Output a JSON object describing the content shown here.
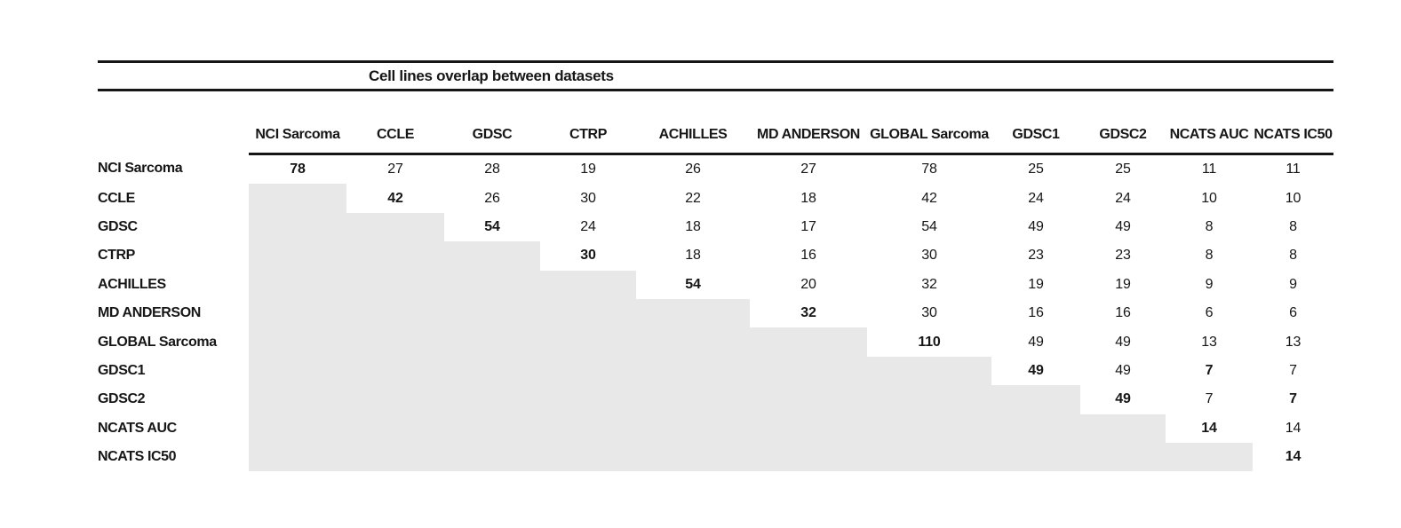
{
  "title_block": {
    "title": "Cell lines overlap between datasets"
  },
  "colors": {
    "shaded_cell": "#e8e8e8",
    "rule": "#161616",
    "text": "#161616",
    "background": "#ffffff"
  },
  "chart_data": {
    "type": "table",
    "title": "Cell lines overlap between datasets",
    "columns": [
      "NCI Sarcoma",
      "CCLE",
      "GDSC",
      "CTRP",
      "ACHILLES",
      "MD ANDERSON",
      "GLOBAL Sarcoma",
      "GDSC1",
      "GDSC2",
      "NCATS AUC",
      "NCATS IC50"
    ],
    "rows": [
      "NCI Sarcoma",
      "CCLE",
      "GDSC",
      "CTRP",
      "ACHILLES",
      "MD ANDERSON",
      "GLOBAL Sarcoma",
      "GDSC1",
      "GDSC2",
      "NCATS AUC",
      "NCATS IC50"
    ],
    "matrix": [
      [
        78,
        27,
        28,
        19,
        26,
        27,
        78,
        25,
        25,
        11,
        11
      ],
      [
        null,
        42,
        26,
        30,
        22,
        18,
        42,
        24,
        24,
        10,
        10
      ],
      [
        null,
        null,
        54,
        24,
        18,
        17,
        54,
        49,
        49,
        8,
        8
      ],
      [
        null,
        null,
        null,
        30,
        18,
        16,
        30,
        23,
        23,
        8,
        8
      ],
      [
        null,
        null,
        null,
        null,
        54,
        20,
        32,
        19,
        19,
        9,
        9
      ],
      [
        null,
        null,
        null,
        null,
        null,
        32,
        30,
        16,
        16,
        6,
        6
      ],
      [
        null,
        null,
        null,
        null,
        null,
        null,
        110,
        49,
        49,
        13,
        13
      ],
      [
        null,
        null,
        null,
        null,
        null,
        null,
        null,
        49,
        49,
        7,
        7
      ],
      [
        null,
        null,
        null,
        null,
        null,
        null,
        null,
        null,
        49,
        7,
        7
      ],
      [
        null,
        null,
        null,
        null,
        null,
        null,
        null,
        null,
        null,
        14,
        14
      ],
      [
        null,
        null,
        null,
        null,
        null,
        null,
        null,
        null,
        null,
        null,
        14
      ]
    ],
    "bold_cells": [
      [
        0,
        0
      ],
      [
        1,
        1
      ],
      [
        2,
        2
      ],
      [
        3,
        3
      ],
      [
        4,
        4
      ],
      [
        5,
        5
      ],
      [
        6,
        6
      ],
      [
        7,
        7
      ],
      [
        7,
        9
      ],
      [
        8,
        8
      ],
      [
        8,
        10
      ],
      [
        9,
        9
      ],
      [
        10,
        10
      ]
    ],
    "layout_hints": {
      "lower_triangle": "shaded",
      "legend_position": "none",
      "grid": "off"
    }
  }
}
